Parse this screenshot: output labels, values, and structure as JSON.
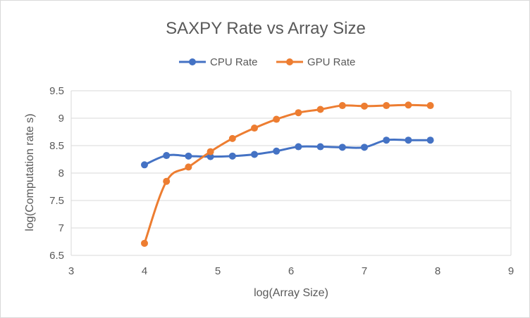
{
  "chart_data": {
    "type": "line",
    "title": "SAXPY Rate vs Array Size",
    "xlabel": "log(Array Size)",
    "ylabel": "log(Computation rate s)",
    "xlim": [
      3,
      9
    ],
    "ylim": [
      6.5,
      9.5
    ],
    "x_ticks": [
      "3",
      "4",
      "5",
      "6",
      "7",
      "8",
      "9"
    ],
    "y_ticks": [
      "6.5",
      "7",
      "7.5",
      "8",
      "8.5",
      "9",
      "9.5"
    ],
    "grid": "horizontal",
    "legend_position": "top",
    "series": [
      {
        "name": "CPU Rate",
        "color": "#4472c4",
        "x": [
          4.0,
          4.3,
          4.6,
          4.9,
          5.2,
          5.5,
          5.8,
          6.1,
          6.4,
          6.7,
          7.0,
          7.3,
          7.6,
          7.9
        ],
        "y": [
          8.15,
          8.32,
          8.31,
          8.3,
          8.31,
          8.34,
          8.4,
          8.48,
          8.48,
          8.47,
          8.47,
          8.6,
          8.6,
          8.6
        ]
      },
      {
        "name": "GPU Rate",
        "color": "#ed7d31",
        "x": [
          4.0,
          4.3,
          4.6,
          4.9,
          5.2,
          5.5,
          5.8,
          6.1,
          6.4,
          6.7,
          7.0,
          7.3,
          7.6,
          7.9
        ],
        "y": [
          6.72,
          7.85,
          8.11,
          8.39,
          8.63,
          8.82,
          8.98,
          9.1,
          9.16,
          9.23,
          9.22,
          9.23,
          9.24,
          9.23
        ]
      }
    ]
  }
}
